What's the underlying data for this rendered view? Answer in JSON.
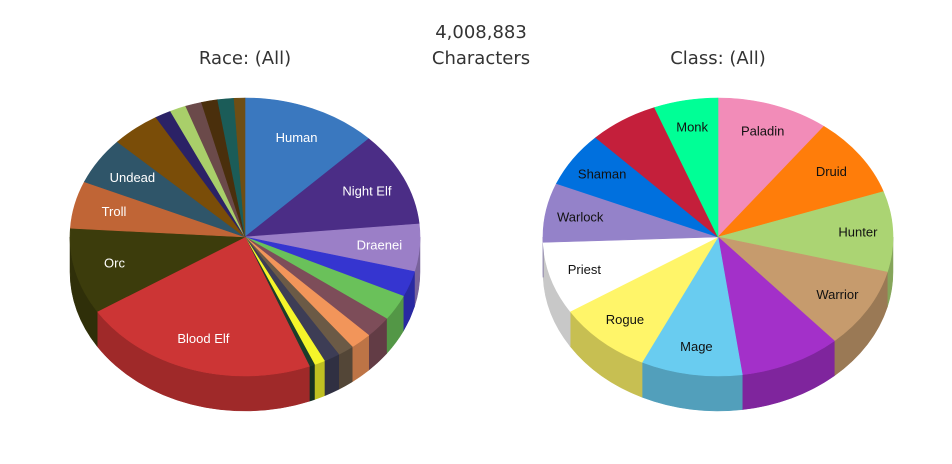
{
  "header": {
    "total": "4,008,883",
    "subtitle": "Characters"
  },
  "chart_data": [
    {
      "type": "pie",
      "title": "Race: (All)",
      "slices": [
        {
          "label": "Human",
          "value": 12.5,
          "color": "#3a78bf",
          "text_color": "#ffffff"
        },
        {
          "label": "Night Elf",
          "value": 11.0,
          "color": "#4b2d86",
          "text_color": "#ffffff"
        },
        {
          "label": "Draenei",
          "value": 5.5,
          "color": "#9b7fc7",
          "text_color": "#ffffff"
        },
        {
          "label": "",
          "value": 3.0,
          "color": "#3535d0",
          "text_color": "#ffffff"
        },
        {
          "label": "",
          "value": 3.0,
          "color": "#6ac15a",
          "text_color": "#ffffff"
        },
        {
          "label": "",
          "value": 2.5,
          "color": "#7d4d59",
          "text_color": "#ffffff"
        },
        {
          "label": "",
          "value": 2.0,
          "color": "#f2955a",
          "text_color": "#ffffff"
        },
        {
          "label": "",
          "value": 1.5,
          "color": "#6b5a46",
          "text_color": "#ffffff"
        },
        {
          "label": "",
          "value": 1.5,
          "color": "#3d3d55",
          "text_color": "#ffffff"
        },
        {
          "label": "",
          "value": 1.0,
          "color": "#f5f52a",
          "text_color": "#ffffff"
        },
        {
          "label": "",
          "value": 0.5,
          "color": "#1c3c2c",
          "text_color": "#ffffff"
        },
        {
          "label": "Blood Elf",
          "value": 22.0,
          "color": "#cc3535",
          "text_color": "#ffffff"
        },
        {
          "label": "Orc",
          "value": 10.0,
          "color": "#3c3c0c",
          "text_color": "#ffffff"
        },
        {
          "label": "Troll",
          "value": 5.5,
          "color": "#c06536",
          "text_color": "#ffffff"
        },
        {
          "label": "Undead",
          "value": 5.5,
          "color": "#2f5569",
          "text_color": "#ffffff"
        },
        {
          "label": "",
          "value": 4.5,
          "color": "#7a4d08",
          "text_color": "#ffffff"
        },
        {
          "label": "",
          "value": 1.5,
          "color": "#2b2266",
          "text_color": "#ffffff"
        },
        {
          "label": "",
          "value": 1.5,
          "color": "#a9cf6a",
          "text_color": "#ffffff"
        },
        {
          "label": "",
          "value": 1.5,
          "color": "#6b4a4a",
          "text_color": "#ffffff"
        },
        {
          "label": "",
          "value": 1.5,
          "color": "#4a2f0c",
          "text_color": "#ffffff"
        },
        {
          "label": "",
          "value": 1.5,
          "color": "#1b5c58",
          "text_color": "#ffffff"
        },
        {
          "label": "",
          "value": 1.0,
          "color": "#6e4e14",
          "text_color": "#ffffff"
        }
      ]
    },
    {
      "type": "pie",
      "title": "Class: (All)",
      "slices": [
        {
          "label": "Paladin",
          "value": 10.5,
          "color": "#f28cb8",
          "text_color": "#111111"
        },
        {
          "label": "Druid",
          "value": 9.5,
          "color": "#ff7d0a",
          "text_color": "#111111"
        },
        {
          "label": "Hunter",
          "value": 9.5,
          "color": "#abd473",
          "text_color": "#111111"
        },
        {
          "label": "Warrior",
          "value": 9.5,
          "color": "#c69b6d",
          "text_color": "#111111"
        },
        {
          "label": "",
          "value": 9.5,
          "color": "#a330c9",
          "text_color": "#ffffff"
        },
        {
          "label": "Mage",
          "value": 9.5,
          "color": "#69ccf0",
          "text_color": "#111111"
        },
        {
          "label": "Rogue",
          "value": 9.0,
          "color": "#fff569",
          "text_color": "#111111"
        },
        {
          "label": "Priest",
          "value": 8.5,
          "color": "#ffffff",
          "text_color": "#111111"
        },
        {
          "label": "Warlock",
          "value": 7.0,
          "color": "#9482c9",
          "text_color": "#111111"
        },
        {
          "label": "Shaman",
          "value": 6.5,
          "color": "#0070de",
          "text_color": "#111111"
        },
        {
          "label": "",
          "value": 6.5,
          "color": "#c41f3b",
          "text_color": "#ffffff"
        },
        {
          "label": "Monk",
          "value": 6.0,
          "color": "#00ff96",
          "text_color": "#111111"
        }
      ]
    }
  ]
}
